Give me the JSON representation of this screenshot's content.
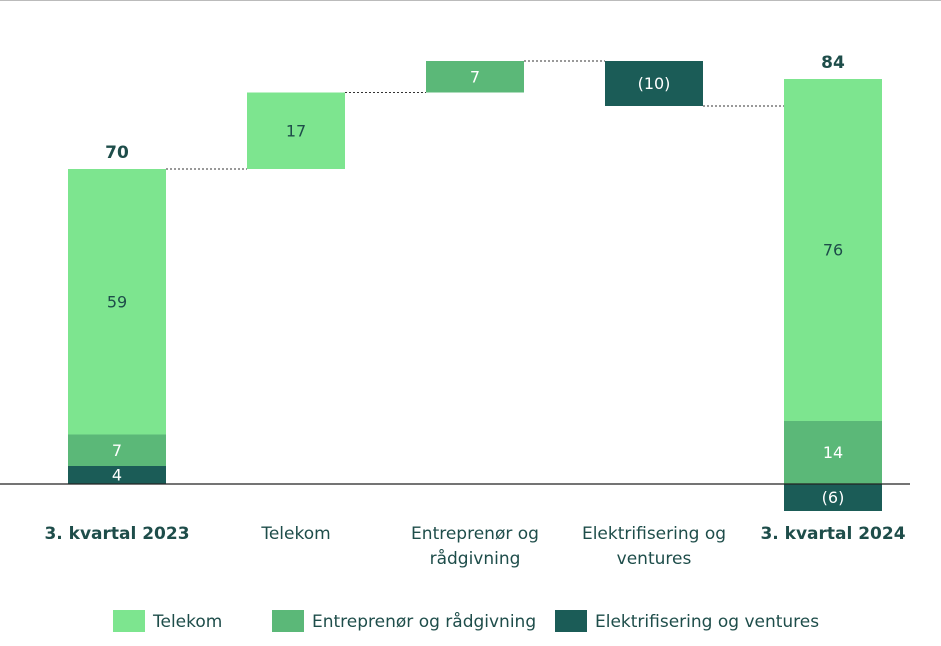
{
  "chart_data": {
    "type": "waterfall",
    "categories": [
      "3. kvartal 2023",
      "Telekom",
      "Entreprenør og rådgivning",
      "Elektrifisering og ventures",
      "3. kvartal 2024"
    ],
    "totals": [
      70,
      null,
      null,
      null,
      84
    ],
    "series": [
      {
        "name": "Telekom",
        "color": "#7de58f",
        "values": [
          59,
          17,
          null,
          null,
          76
        ]
      },
      {
        "name": "Entreprenør og rådgivning",
        "color": "#5bb878",
        "values": [
          7,
          null,
          7,
          null,
          14
        ]
      },
      {
        "name": "Elektrifisering og ventures",
        "color": "#1b5c57",
        "values": [
          4,
          null,
          null,
          -10,
          -6
        ],
        "value_labels": [
          "4",
          null,
          null,
          "(10)",
          "(6)"
        ]
      }
    ]
  }
}
